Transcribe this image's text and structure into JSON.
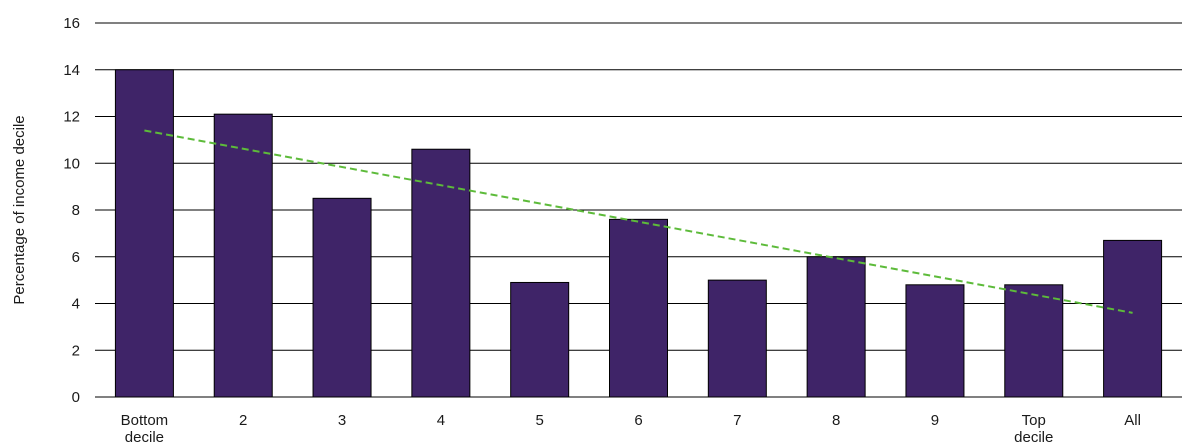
{
  "chart_data": {
    "type": "bar",
    "categories": [
      [
        "Bottom",
        "decile"
      ],
      [
        "2"
      ],
      [
        "3"
      ],
      [
        "4"
      ],
      [
        "5"
      ],
      [
        "6"
      ],
      [
        "7"
      ],
      [
        "8"
      ],
      [
        "9"
      ],
      [
        "Top",
        "decile"
      ],
      [
        "All"
      ]
    ],
    "values": [
      14.0,
      12.1,
      8.5,
      10.6,
      4.9,
      7.6,
      5.0,
      6.0,
      4.8,
      4.8,
      6.7
    ],
    "ylabel": "Percentage of income decile",
    "ylim": [
      0,
      16
    ],
    "yticks": [
      0,
      2,
      4,
      6,
      8,
      10,
      12,
      14,
      16
    ],
    "grid": true,
    "trendline": {
      "style": "dashed",
      "start": 11.4,
      "end": 3.6
    },
    "colors": {
      "bar": "#3f2468",
      "trendline": "#5dbb3a",
      "grid": "#000000"
    }
  }
}
